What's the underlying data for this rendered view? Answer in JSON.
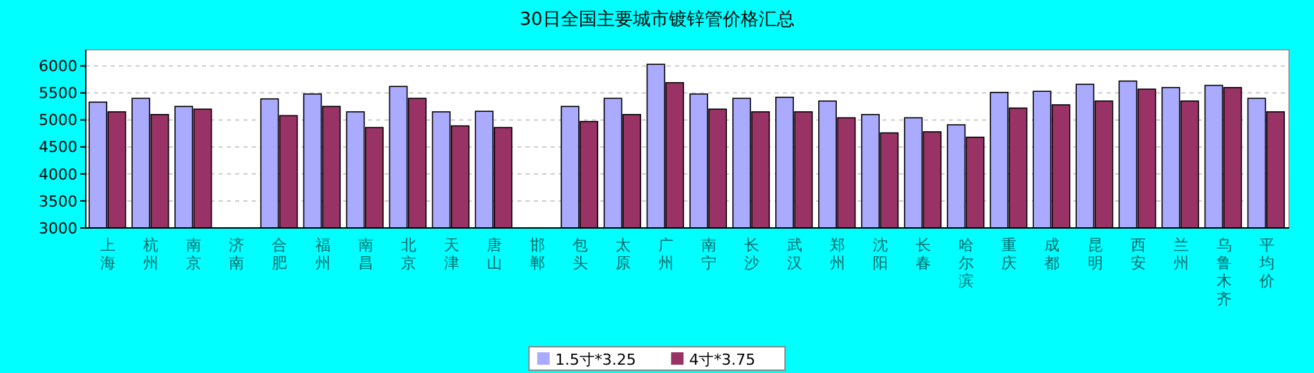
{
  "chart_data": {
    "type": "bar",
    "title": "30日全国主要城市镀锌管价格汇总",
    "categories": [
      "上海",
      "杭州",
      "南京",
      "济南",
      "合肥",
      "福州",
      "南昌",
      "北京",
      "天津",
      "唐山",
      "邯郸",
      "包头",
      "太原",
      "广州",
      "南宁",
      "长沙",
      "武汉",
      "郑州",
      "沈阳",
      "长春",
      "哈尔滨",
      "重庆",
      "成都",
      "昆明",
      "西安",
      "兰州",
      "乌鲁木齐",
      "平均价"
    ],
    "series": [
      {
        "name": "1.5寸*3.25",
        "color": "#aaaaff",
        "values": [
          5330,
          5400,
          5250,
          null,
          5390,
          5480,
          5150,
          5620,
          5150,
          5160,
          null,
          5250,
          5400,
          6030,
          5480,
          5400,
          5420,
          5350,
          5100,
          5040,
          4910,
          5510,
          5530,
          5660,
          5720,
          5600,
          5640,
          5400
        ]
      },
      {
        "name": "4寸*3.75",
        "color": "#993366",
        "values": [
          5150,
          5100,
          5200,
          null,
          5080,
          5250,
          4860,
          5400,
          4890,
          4860,
          null,
          4970,
          5100,
          5690,
          5200,
          5150,
          5150,
          5040,
          4760,
          4780,
          4680,
          5220,
          5280,
          5350,
          5570,
          5350,
          5600,
          5150
        ]
      }
    ],
    "ylim": [
      3000,
      6300
    ],
    "yticks": [
      3000,
      3500,
      4000,
      4500,
      5000,
      5500,
      6000
    ],
    "grid": "y",
    "legend": "bottom"
  }
}
